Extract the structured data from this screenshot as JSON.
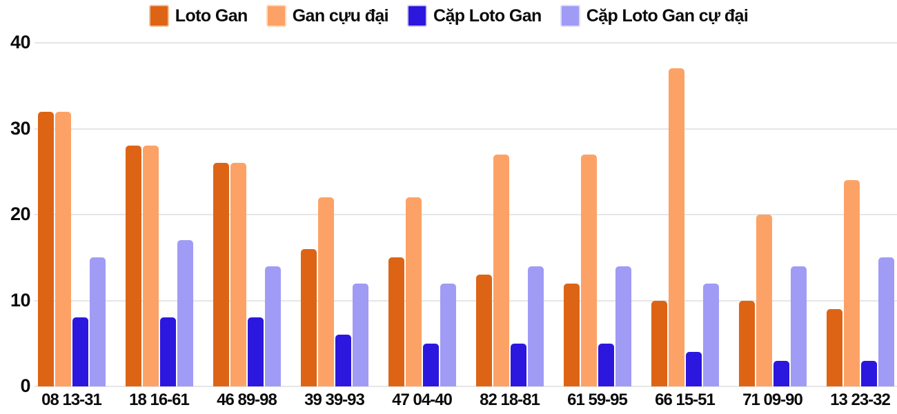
{
  "chart_data": {
    "type": "bar",
    "title": "",
    "xlabel": "",
    "ylabel": "",
    "ylim": [
      0,
      40
    ],
    "yticks": [
      0,
      10,
      20,
      30,
      40
    ],
    "grid": "horizontal",
    "legend_position": "top-center",
    "categories": [
      "08 13-31",
      "18 16-61",
      "46 89-98",
      "39 39-93",
      "47 04-40",
      "82 18-81",
      "61 59-95",
      "66 15-51",
      "71 09-90",
      "13 23-32"
    ],
    "series": [
      {
        "name": "Loto Gan",
        "color": "#DD6415",
        "swatch_border": "#F2C09A",
        "values": [
          32,
          28,
          26,
          16,
          15,
          13,
          12,
          10,
          10,
          9
        ]
      },
      {
        "name": "Gan cựu đại",
        "color": "#FDA266",
        "swatch_border": "#FED9BE",
        "values": [
          32,
          28,
          26,
          22,
          22,
          27,
          27,
          37,
          20,
          24
        ]
      },
      {
        "name": "Cặp Loto Gan",
        "color": "#2B17DE",
        "swatch_border": "#CBC5F4",
        "values": [
          8,
          8,
          8,
          6,
          5,
          5,
          5,
          4,
          3,
          3
        ]
      },
      {
        "name": "Cặp Loto Gan cự đại",
        "color": "#A09BF5",
        "swatch_border": "#DDDAFB",
        "values": [
          15,
          17,
          14,
          12,
          12,
          14,
          14,
          12,
          14,
          15
        ]
      }
    ]
  },
  "colors": {
    "background": "#ffffff",
    "gridline": "#e6e6e6",
    "text": "#0b0b0b"
  }
}
